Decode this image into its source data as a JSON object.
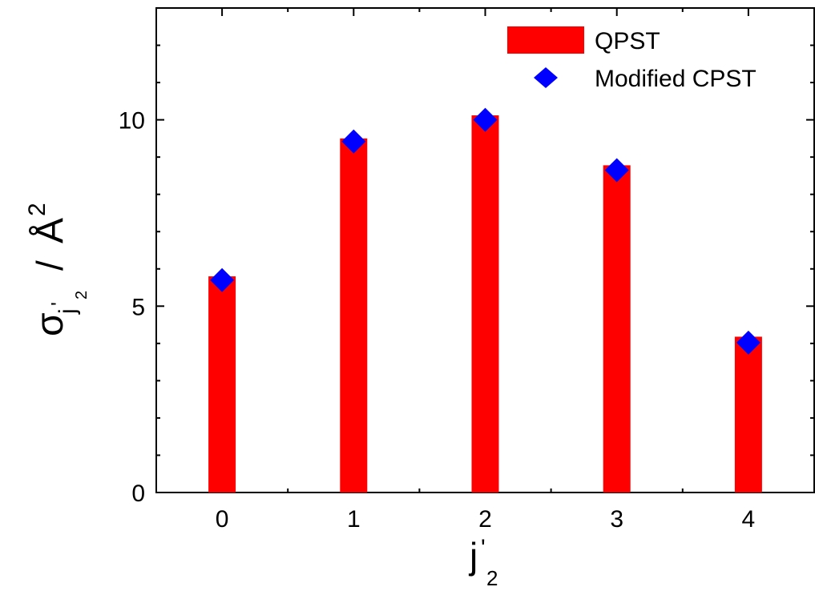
{
  "chart_data": {
    "type": "bar",
    "categories": [
      "0",
      "1",
      "2",
      "3",
      "4"
    ],
    "x": [
      0,
      1,
      2,
      3,
      4
    ],
    "series": [
      {
        "name": "QPST",
        "kind": "bar",
        "color": "#ff0000",
        "values": [
          5.8,
          9.5,
          10.12,
          8.78,
          4.18
        ]
      },
      {
        "name": "Modified CPST",
        "kind": "scatter",
        "marker": "diamond",
        "color": "#0000ff",
        "values": [
          5.7,
          9.42,
          10.0,
          8.65,
          4.02
        ]
      }
    ],
    "x_ticks": [
      "0",
      "1",
      "2",
      "3",
      "4"
    ],
    "y_ticks": [
      "0",
      "5",
      "10"
    ],
    "xlabel": {
      "main": "j",
      "prime": "'",
      "sub": "2"
    },
    "ylabel": {
      "sigma": "σ",
      "sub_j": "j",
      "prime": "'",
      "sub_2": "2",
      "slash": "/",
      "unit": "Å",
      "exp": "2"
    },
    "xlim": [
      -0.5,
      4.5
    ],
    "ylim": [
      0,
      13
    ],
    "grid": false,
    "legend_position": "top-right"
  }
}
